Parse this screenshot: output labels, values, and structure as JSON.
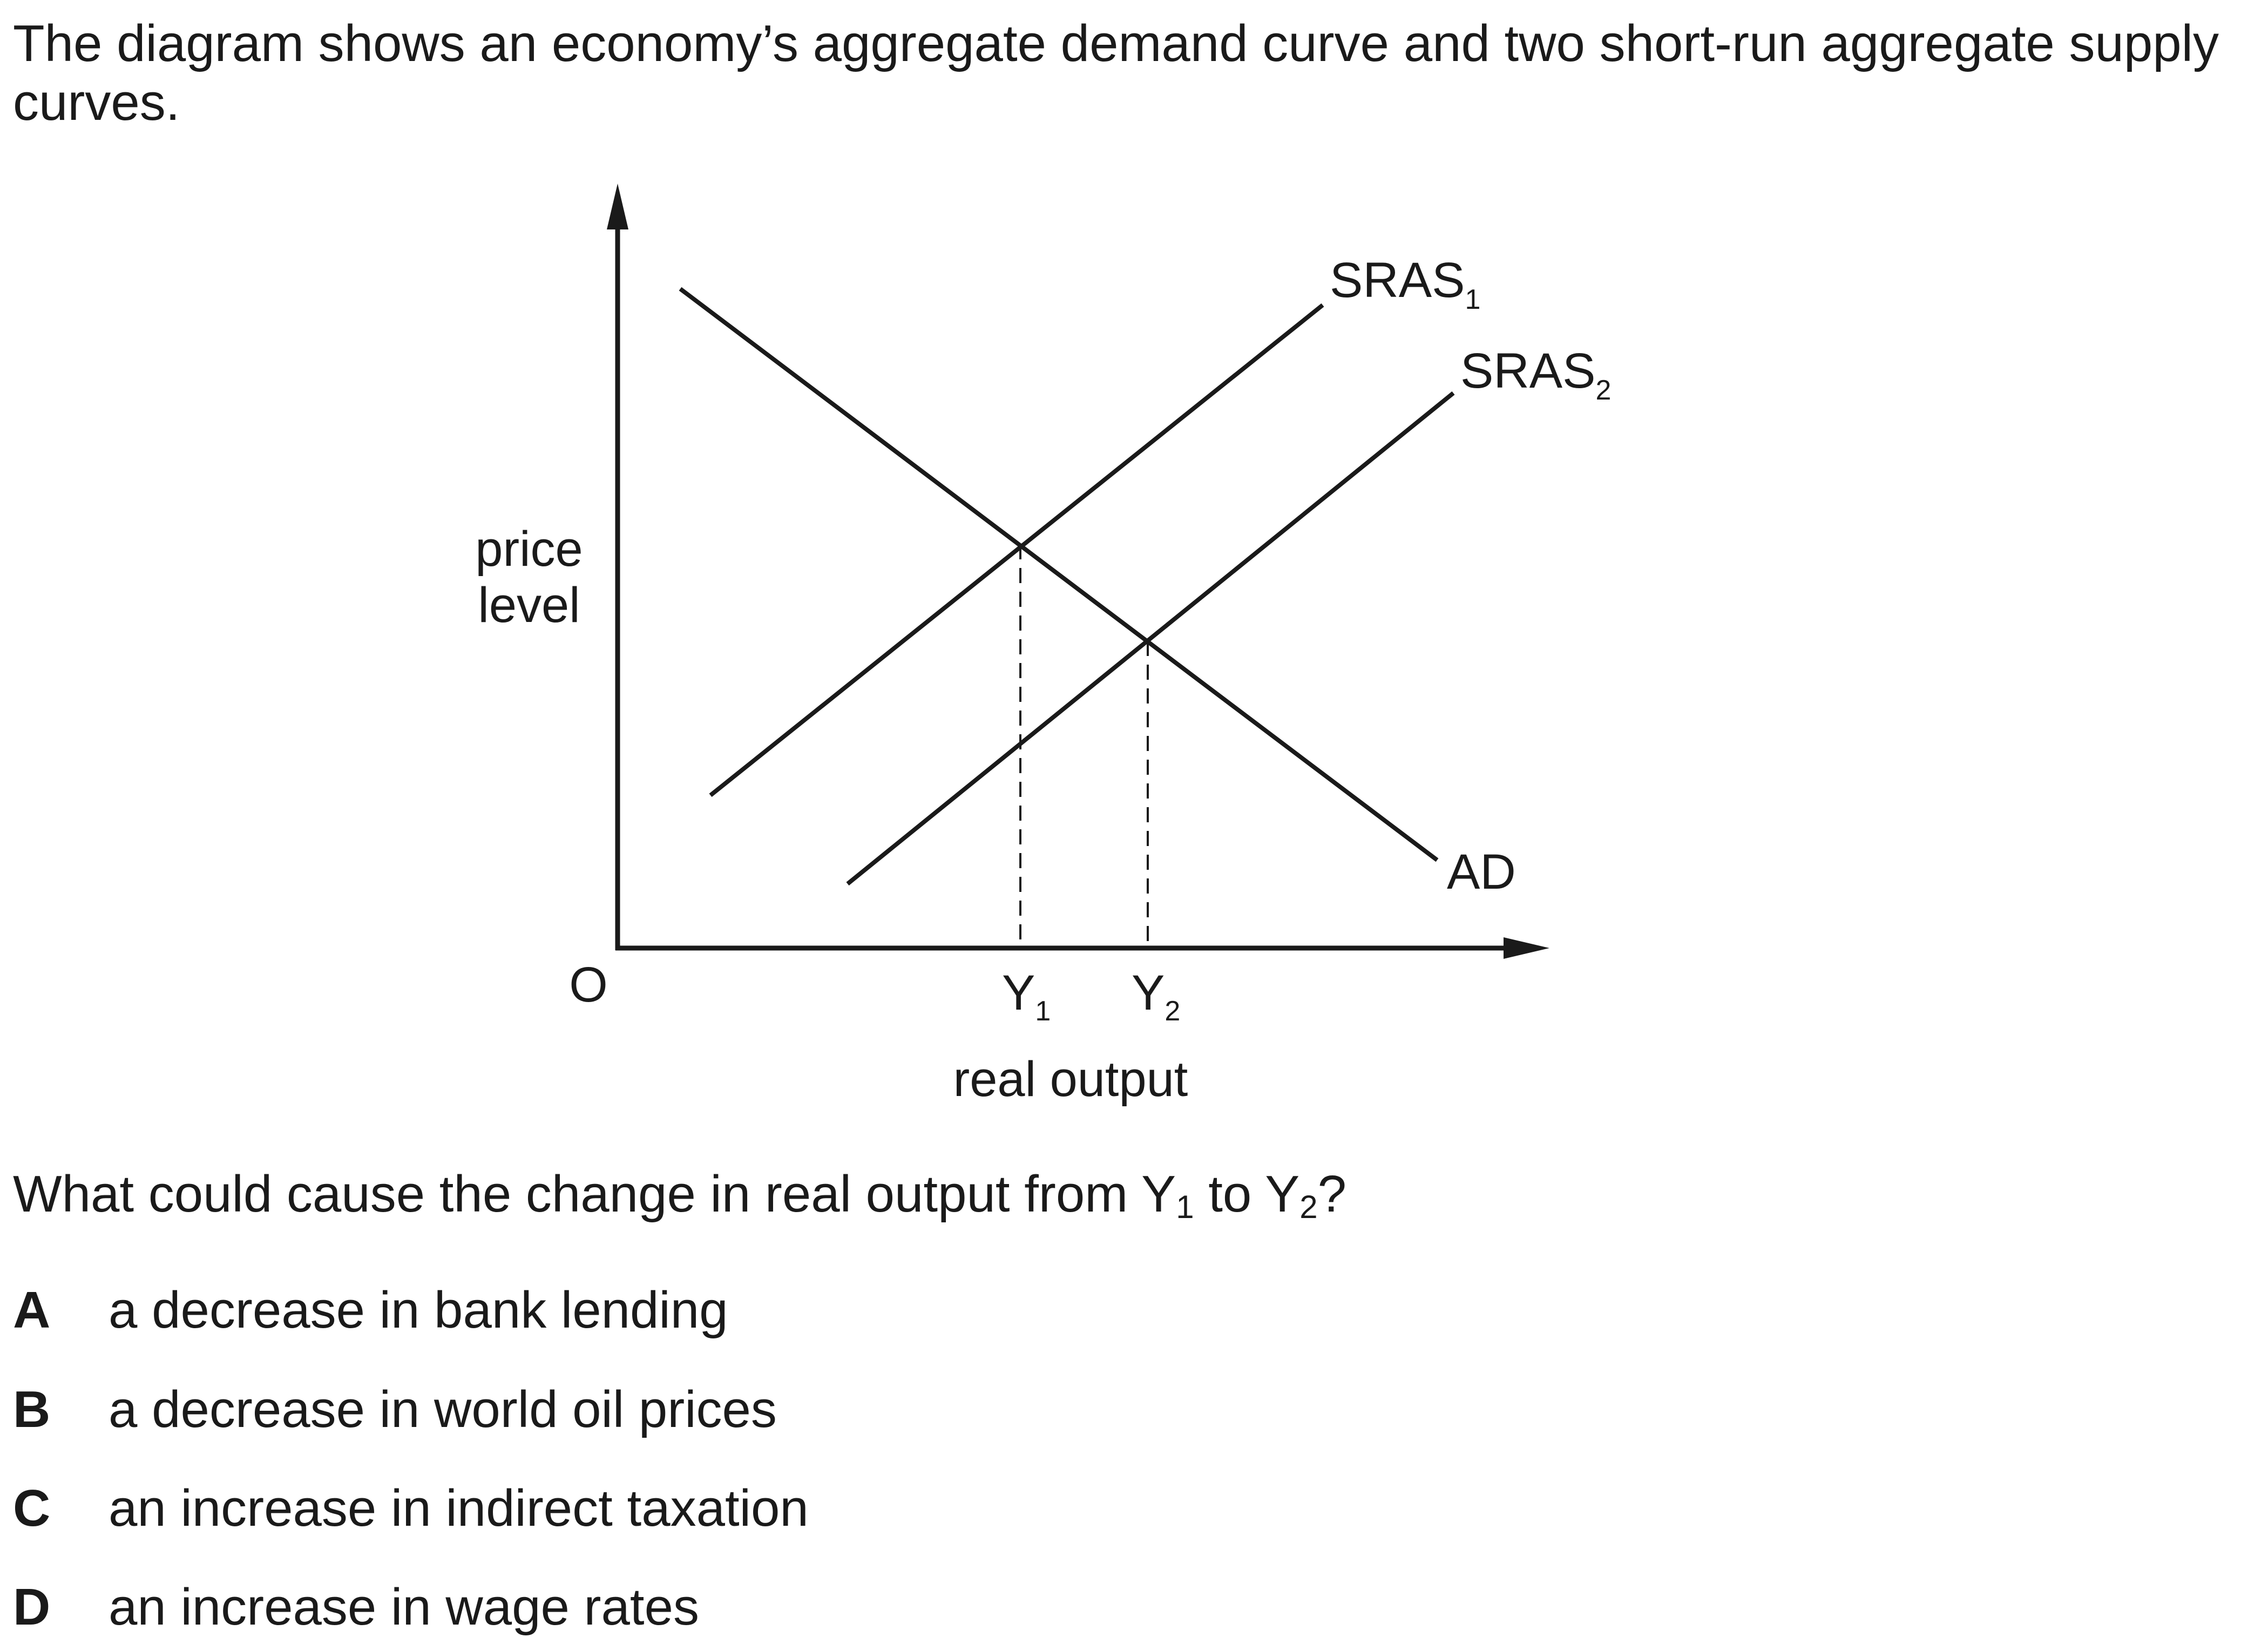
{
  "intro_text": "The diagram shows an economy’s aggregate demand curve and two short-run aggregate supply curves.",
  "diagram": {
    "y_axis_label_line1": "price",
    "y_axis_label_line2": "level",
    "origin_label": "O",
    "x_axis_label": "real output",
    "curves": {
      "ad": "AD",
      "sras1_base": "SRAS",
      "sras1_sub": "1",
      "sras2_base": "SRAS",
      "sras2_sub": "2"
    },
    "ticks": {
      "y1_base": "Y",
      "y1_sub": "1",
      "y2_base": "Y",
      "y2_sub": "2"
    }
  },
  "question": {
    "part1": "What could cause the change in real output from Y",
    "sub1": "1",
    "part2": " to Y",
    "sub2": "2",
    "part3": "?"
  },
  "options": [
    {
      "letter": "A",
      "text": "a decrease in bank lending"
    },
    {
      "letter": "B",
      "text": "a decrease in world oil prices"
    },
    {
      "letter": "C",
      "text": "an increase in indirect taxation"
    },
    {
      "letter": "D",
      "text": "an increase in wage rates"
    }
  ]
}
